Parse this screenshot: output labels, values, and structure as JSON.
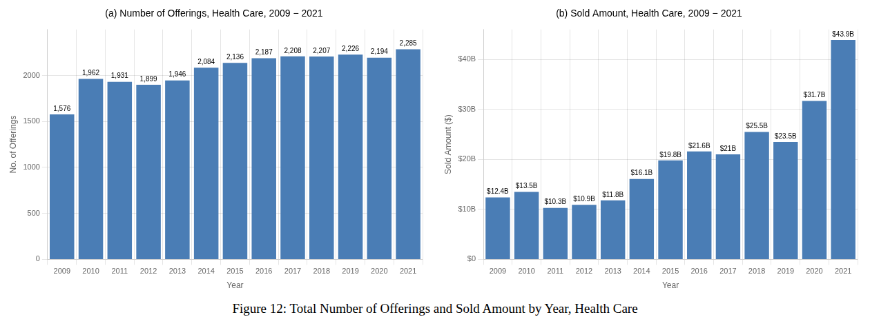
{
  "title": "Figure 12:  Total Number of Offerings and Sold Amount by Year, Health Care",
  "chart_data": [
    {
      "type": "bar",
      "title": "(a) Number of Offerings, Health Care, 2009 − 2021",
      "x_label": "Year",
      "y_label": "No. of Offerings",
      "categories": [
        "2009",
        "2010",
        "2011",
        "2012",
        "2013",
        "2014",
        "2015",
        "2016",
        "2017",
        "2018",
        "2019",
        "2020",
        "2021"
      ],
      "values": [
        1576,
        1962,
        1931,
        1899,
        1946,
        2084,
        2136,
        2187,
        2208,
        2207,
        2226,
        2194,
        2285
      ],
      "value_labels": [
        "1,576",
        "1,962",
        "1,931",
        "1,899",
        "1,946",
        "2,084",
        "2,136",
        "2,187",
        "2,208",
        "2,207",
        "2,226",
        "2,194",
        "2,285"
      ],
      "data_labels": true,
      "color": "#4a7db5",
      "ylim": [
        0,
        2500
      ],
      "yticks": [
        0,
        500,
        1000,
        1500,
        2000
      ],
      "grid": true
    },
    {
      "type": "bar",
      "title": "(b) Sold Amount, Health Care, 2009 − 2021",
      "x_label": "Year",
      "y_label": "Sold Amount ($)",
      "categories": [
        "2009",
        "2010",
        "2011",
        "2012",
        "2013",
        "2014",
        "2015",
        "2016",
        "2017",
        "2018",
        "2019",
        "2020",
        "2021"
      ],
      "values": [
        12.4,
        13.5,
        10.3,
        10.9,
        11.8,
        16.1,
        19.8,
        21.6,
        21.0,
        25.5,
        23.5,
        31.7,
        43.9
      ],
      "value_labels": [
        "$12.4B",
        "$13.5B",
        "$10.3B",
        "$10.9B",
        "$11.8B",
        "$16.1B",
        "$19.8B",
        "$21.6B",
        "$21B",
        "$25.5B",
        "$23.5B",
        "$31.7B",
        "$43.9B"
      ],
      "data_labels": true,
      "color": "#4a7db5",
      "ylim": [
        0,
        46
      ],
      "yticks": [
        {
          "value": 0,
          "label": "$0"
        },
        {
          "value": 10,
          "label": "$10B"
        },
        {
          "value": 20,
          "label": "$20B"
        },
        {
          "value": 30,
          "label": "$30B"
        },
        {
          "value": 40,
          "label": "$40B"
        }
      ],
      "grid": true
    }
  ]
}
